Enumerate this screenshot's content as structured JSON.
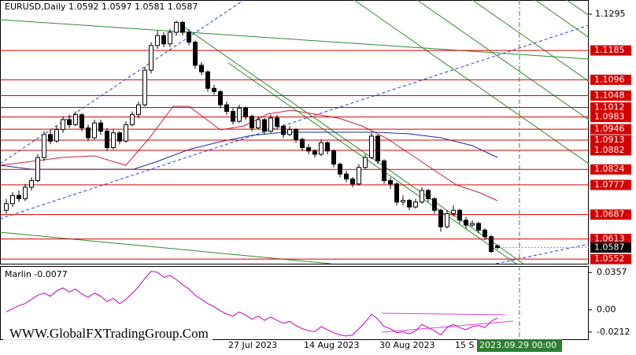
{
  "chart_data": [
    {
      "type": "candlestick",
      "title": "EURUSD,Daily  1.0592 1.0597 1.0581 1.0587",
      "categories": [
        null,
        null,
        null,
        null,
        null,
        null,
        null,
        null,
        null,
        null,
        null,
        null,
        null,
        null,
        null,
        null,
        null,
        null,
        null,
        null,
        null,
        null,
        null,
        null,
        null,
        null,
        null,
        null,
        null,
        null,
        null,
        null,
        null,
        null,
        null,
        "27 Jul 2023",
        null,
        null,
        null,
        null,
        null,
        null,
        null,
        null,
        null,
        null,
        null,
        "14 Aug 2023",
        null,
        null,
        null,
        null,
        null,
        null,
        null,
        null,
        null,
        null,
        null,
        "30 Aug 2023",
        null,
        null,
        null,
        null,
        null,
        null,
        null,
        null,
        null,
        null,
        null,
        "15 S",
        null,
        null,
        null,
        null,
        null,
        null,
        null
      ],
      "ohlc": [
        [
          1.07,
          1.0735,
          1.069,
          1.072
        ],
        [
          1.072,
          1.0755,
          1.071,
          1.0745
        ],
        [
          1.0745,
          1.076,
          1.0725,
          1.0735
        ],
        [
          1.0735,
          1.078,
          1.0728,
          1.077
        ],
        [
          1.077,
          1.08,
          1.076,
          1.079
        ],
        [
          1.079,
          1.087,
          1.0785,
          1.086
        ],
        [
          1.086,
          1.094,
          1.085,
          1.093
        ],
        [
          1.093,
          1.0945,
          1.09,
          1.091
        ],
        [
          1.091,
          1.0955,
          1.0905,
          1.0945
        ],
        [
          1.0945,
          1.0985,
          1.0935,
          1.0975
        ],
        [
          1.0975,
          1.099,
          1.095,
          1.096
        ],
        [
          1.096,
          1.1,
          1.0955,
          1.099
        ],
        [
          1.099,
          1.0995,
          1.094,
          1.095
        ],
        [
          1.095,
          1.096,
          1.091,
          1.092
        ],
        [
          1.092,
          1.0975,
          1.0915,
          1.0965
        ],
        [
          1.0965,
          1.0975,
          1.093,
          1.094
        ],
        [
          1.094,
          1.095,
          1.088,
          1.089
        ],
        [
          1.089,
          1.0945,
          1.0885,
          1.0935
        ],
        [
          1.0935,
          1.094,
          1.09,
          1.091
        ],
        [
          1.091,
          1.097,
          1.0905,
          1.096
        ],
        [
          1.096,
          1.1,
          1.0955,
          1.099
        ],
        [
          1.099,
          1.103,
          1.098,
          1.102
        ],
        [
          1.102,
          1.1135,
          1.1015,
          1.1125
        ],
        [
          1.1125,
          1.121,
          1.1115,
          1.12
        ],
        [
          1.12,
          1.1245,
          1.119,
          1.123
        ],
        [
          1.123,
          1.124,
          1.1195,
          1.1205
        ],
        [
          1.1205,
          1.125,
          1.1195,
          1.124
        ],
        [
          1.124,
          1.1276,
          1.123,
          1.127
        ],
        [
          1.127,
          1.1275,
          1.123,
          1.124
        ],
        [
          1.124,
          1.125,
          1.12,
          1.121
        ],
        [
          1.121,
          1.1215,
          1.113,
          1.114
        ],
        [
          1.114,
          1.115,
          1.111,
          1.112
        ],
        [
          1.112,
          1.1125,
          1.106,
          1.107
        ],
        [
          1.107,
          1.108,
          1.105,
          1.106
        ],
        [
          1.106,
          1.1065,
          1.101,
          1.102
        ],
        [
          1.102,
          1.103,
          1.099,
          1.1
        ],
        [
          1.1,
          1.101,
          1.096,
          1.097
        ],
        [
          1.097,
          1.102,
          1.0965,
          1.101
        ],
        [
          1.101,
          1.1015,
          1.0975,
          1.0985
        ],
        [
          1.0985,
          1.099,
          1.094,
          1.095
        ],
        [
          1.095,
          1.0985,
          1.0945,
          1.0975
        ],
        [
          1.0975,
          1.098,
          1.093,
          1.094
        ],
        [
          1.094,
          1.099,
          1.0935,
          1.098
        ],
        [
          1.098,
          1.099,
          1.0945,
          1.0955
        ],
        [
          1.0955,
          1.096,
          1.092,
          1.093
        ],
        [
          1.093,
          1.0955,
          1.0925,
          1.0945
        ],
        [
          1.0945,
          1.095,
          1.0905,
          1.0915
        ],
        [
          1.0915,
          1.092,
          1.088,
          1.089
        ],
        [
          1.089,
          1.09,
          1.087,
          1.088
        ],
        [
          1.088,
          1.0885,
          1.086,
          1.087
        ],
        [
          1.087,
          1.0915,
          1.0865,
          1.0905
        ],
        [
          1.0905,
          1.091,
          1.087,
          1.088
        ],
        [
          1.088,
          1.0885,
          1.083,
          1.084
        ],
        [
          1.084,
          1.0845,
          1.08,
          1.081
        ],
        [
          1.081,
          1.082,
          1.0785,
          1.0795
        ],
        [
          1.0795,
          1.08,
          1.077,
          1.078
        ],
        [
          1.078,
          1.084,
          1.0775,
          1.083
        ],
        [
          1.083,
          1.087,
          1.0825,
          1.086
        ],
        [
          1.086,
          1.0935,
          1.0855,
          1.0925
        ],
        [
          1.0925,
          1.093,
          1.084,
          1.085
        ],
        [
          1.085,
          1.0855,
          1.078,
          1.079
        ],
        [
          1.079,
          1.08,
          1.0765,
          1.078
        ],
        [
          1.078,
          1.0785,
          1.0715,
          1.0725
        ],
        [
          1.0725,
          1.0745,
          1.0715,
          1.073
        ],
        [
          1.073,
          1.0735,
          1.07,
          1.071
        ],
        [
          1.071,
          1.0735,
          1.0705,
          1.0725
        ],
        [
          1.0725,
          1.077,
          1.072,
          1.076
        ],
        [
          1.076,
          1.0765,
          1.0725,
          1.0735
        ],
        [
          1.0735,
          1.074,
          1.069,
          1.07
        ],
        [
          1.07,
          1.0705,
          1.0635,
          1.065
        ],
        [
          1.065,
          1.07,
          1.0645,
          1.069
        ],
        [
          1.069,
          1.0715,
          1.068,
          1.07
        ],
        [
          1.07,
          1.0705,
          1.066,
          1.067
        ],
        [
          1.067,
          1.068,
          1.0645,
          1.0655
        ],
        [
          1.0655,
          1.067,
          1.065,
          1.066
        ],
        [
          1.066,
          1.0665,
          1.063,
          1.064
        ],
        [
          1.064,
          1.0645,
          1.061,
          1.062
        ],
        [
          1.062,
          1.0625,
          1.057,
          1.0575
        ],
        [
          1.0592,
          1.0597,
          1.0581,
          1.0587
        ]
      ],
      "color_up": "#ffffff",
      "color_down": "#000000",
      "ylim": [
        1.0538,
        1.1338
      ],
      "yticks": [
        1.1295
      ],
      "levels": [
        1.1185,
        1.1096,
        1.1048,
        1.1012,
        1.0983,
        1.0946,
        1.0913,
        1.0882,
        1.0824,
        1.0777,
        1.0687,
        1.0613,
        1.0552
      ],
      "level_color": "#d40000",
      "annotations": [
        "WWW.GlobalFXTradingGroup.Com",
        "2023.09.29 00:00"
      ]
    },
    {
      "type": "line",
      "title": "Marlin -0.0077",
      "color": "#c000c0",
      "values": [
        -0.002,
        0.001,
        0.004,
        0.006,
        0.01,
        0.014,
        0.016,
        0.013,
        0.018,
        0.021,
        0.017,
        0.02,
        0.015,
        0.012,
        0.016,
        0.013,
        0.008,
        0.011,
        0.006,
        0.01,
        0.016,
        0.022,
        0.03,
        0.037,
        0.036,
        0.031,
        0.033,
        0.029,
        0.024,
        0.02,
        0.014,
        0.01,
        0.006,
        0.003,
        -0.001,
        -0.004,
        -0.006,
        -0.002,
        -0.005,
        -0.009,
        -0.006,
        -0.01,
        -0.007,
        -0.01,
        -0.013,
        -0.011,
        -0.015,
        -0.018,
        -0.02,
        -0.021,
        -0.016,
        -0.019,
        -0.022,
        -0.024,
        -0.025,
        -0.024,
        -0.018,
        -0.012,
        -0.004,
        -0.009,
        -0.016,
        -0.018,
        -0.022,
        -0.021,
        -0.023,
        -0.02,
        -0.014,
        -0.017,
        -0.02,
        -0.024,
        -0.017,
        -0.014,
        -0.017,
        -0.019,
        -0.016,
        -0.015,
        -0.017,
        -0.011,
        -0.0077
      ],
      "ylim": [
        -0.0289,
        0.0419
      ],
      "yticks": [
        0.0357,
        {
          "value": 0,
          "label": "0.00"
        },
        -0.0212
      ]
    }
  ]
}
